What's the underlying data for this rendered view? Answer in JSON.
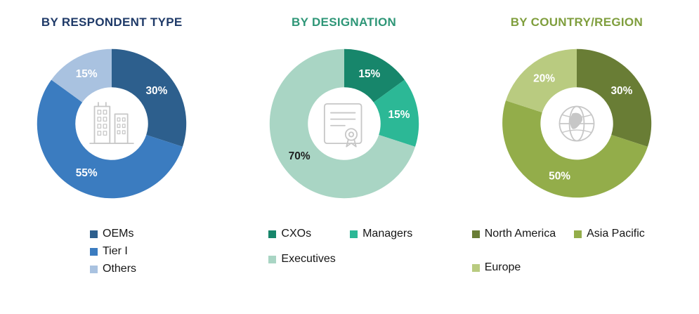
{
  "page": {
    "background": "#ffffff"
  },
  "chart_data": [
    {
      "type": "pie",
      "donut": true,
      "title": "BY RESPONDENT TYPE",
      "title_color": "#1f3a68",
      "center_icon": "buildings-icon",
      "start_angle_deg": 0,
      "direction": "clockwise",
      "segments": [
        {
          "label": "OEMs",
          "value": 30,
          "pct_label": "30%",
          "color": "#2d5f8d",
          "pct_color": "#ffffff"
        },
        {
          "label": "Tier I",
          "value": 55,
          "pct_label": "55%",
          "color": "#3b7cc0",
          "pct_color": "#ffffff"
        },
        {
          "label": "Others",
          "value": 15,
          "pct_label": "15%",
          "color": "#a9c2e0",
          "pct_color": "#ffffff"
        }
      ],
      "legend_rows": [
        [
          "OEMs"
        ],
        [
          "Tier I"
        ],
        [
          "Others"
        ]
      ]
    },
    {
      "type": "pie",
      "donut": true,
      "title": "BY DESIGNATION",
      "title_color": "#2e9677",
      "center_icon": "certificate-icon",
      "start_angle_deg": 0,
      "direction": "clockwise",
      "segments": [
        {
          "label": "CXOs",
          "value": 15,
          "pct_label": "15%",
          "color": "#17866b",
          "pct_color": "#ffffff"
        },
        {
          "label": "Managers",
          "value": 15,
          "pct_label": "15%",
          "color": "#2cb896",
          "pct_color": "#ffffff"
        },
        {
          "label": "Executives",
          "value": 70,
          "pct_label": "70%",
          "color": "#a9d5c4",
          "pct_color": "#1f1f1f"
        }
      ],
      "legend_rows": [
        [
          "CXOs",
          "Managers"
        ],
        [
          "Executives"
        ]
      ]
    },
    {
      "type": "pie",
      "donut": true,
      "title": "BY COUNTRY/REGION",
      "title_color": "#7f9e3d",
      "center_icon": "globe-icon",
      "start_angle_deg": 0,
      "direction": "clockwise",
      "segments": [
        {
          "label": "North America",
          "value": 30,
          "pct_label": "30%",
          "color": "#697d35",
          "pct_color": "#ffffff"
        },
        {
          "label": "Asia Pacific",
          "value": 50,
          "pct_label": "50%",
          "color": "#93ad4a",
          "pct_color": "#ffffff"
        },
        {
          "label": "Europe",
          "value": 20,
          "pct_label": "20%",
          "color": "#b9cb80",
          "pct_color": "#ffffff"
        }
      ],
      "legend_rows": [
        [
          "North America",
          "Asia Pacific"
        ],
        [
          "Europe"
        ]
      ]
    }
  ]
}
